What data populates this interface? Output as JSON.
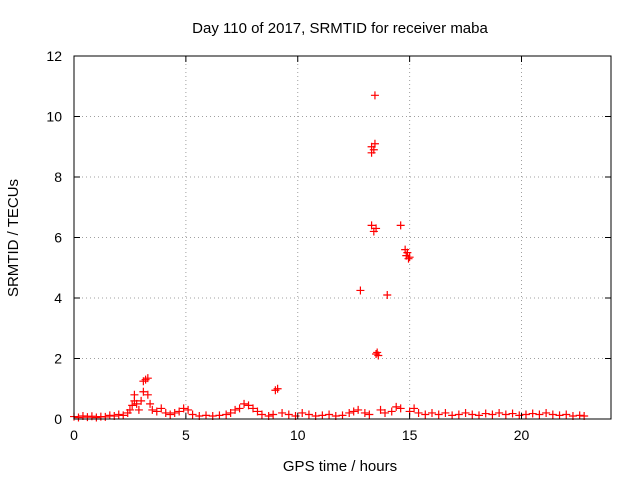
{
  "chart_data": {
    "type": "scatter",
    "title": "Day 110 of 2017, SRMTID for receiver maba",
    "xlabel": "GPS time / hours",
    "ylabel": "SRMTID / TECUs",
    "xlim": [
      0,
      24
    ],
    "ylim": [
      0,
      12
    ],
    "x_ticks": [
      0,
      5,
      10,
      15,
      20
    ],
    "y_ticks": [
      0,
      2,
      4,
      6,
      8,
      10,
      12
    ],
    "x_tick_labels": [
      "0",
      "5",
      "10",
      "15",
      "20"
    ],
    "y_tick_labels": [
      "0",
      "2",
      "4",
      "6",
      "8",
      "10",
      "12"
    ],
    "grid": true,
    "marker": "+",
    "colors": {
      "marker": "#ff0000",
      "grid": "#a0a0a0",
      "axis": "#000000"
    },
    "series": [
      {
        "name": "SRMTID",
        "points": [
          [
            0.0,
            0.08
          ],
          [
            0.2,
            0.05
          ],
          [
            0.4,
            0.1
          ],
          [
            0.6,
            0.06
          ],
          [
            0.8,
            0.09
          ],
          [
            1.0,
            0.05
          ],
          [
            1.2,
            0.08
          ],
          [
            1.4,
            0.07
          ],
          [
            1.6,
            0.12
          ],
          [
            1.8,
            0.1
          ],
          [
            2.0,
            0.15
          ],
          [
            2.2,
            0.12
          ],
          [
            2.4,
            0.2
          ],
          [
            2.5,
            0.3
          ],
          [
            2.6,
            0.45
          ],
          [
            2.7,
            0.6
          ],
          [
            2.7,
            0.8
          ],
          [
            2.8,
            0.5
          ],
          [
            2.9,
            0.3
          ],
          [
            3.0,
            0.6
          ],
          [
            3.1,
            0.9
          ],
          [
            3.1,
            1.25
          ],
          [
            3.2,
            1.3
          ],
          [
            3.3,
            1.35
          ],
          [
            3.3,
            0.8
          ],
          [
            3.4,
            0.5
          ],
          [
            3.5,
            0.3
          ],
          [
            3.7,
            0.25
          ],
          [
            3.9,
            0.35
          ],
          [
            4.1,
            0.2
          ],
          [
            4.3,
            0.15
          ],
          [
            4.5,
            0.2
          ],
          [
            4.7,
            0.25
          ],
          [
            4.9,
            0.35
          ],
          [
            5.1,
            0.3
          ],
          [
            5.3,
            0.15
          ],
          [
            5.6,
            0.1
          ],
          [
            5.9,
            0.12
          ],
          [
            6.2,
            0.1
          ],
          [
            6.5,
            0.12
          ],
          [
            6.8,
            0.15
          ],
          [
            7.0,
            0.2
          ],
          [
            7.2,
            0.3
          ],
          [
            7.4,
            0.35
          ],
          [
            7.6,
            0.5
          ],
          [
            7.8,
            0.45
          ],
          [
            8.0,
            0.35
          ],
          [
            8.2,
            0.25
          ],
          [
            8.4,
            0.15
          ],
          [
            8.7,
            0.1
          ],
          [
            8.9,
            0.15
          ],
          [
            9.0,
            0.95
          ],
          [
            9.1,
            1.0
          ],
          [
            9.3,
            0.2
          ],
          [
            9.6,
            0.15
          ],
          [
            9.9,
            0.1
          ],
          [
            10.2,
            0.2
          ],
          [
            10.5,
            0.15
          ],
          [
            10.8,
            0.1
          ],
          [
            11.1,
            0.12
          ],
          [
            11.4,
            0.15
          ],
          [
            11.7,
            0.1
          ],
          [
            12.0,
            0.12
          ],
          [
            12.3,
            0.2
          ],
          [
            12.5,
            0.25
          ],
          [
            12.7,
            0.3
          ],
          [
            12.8,
            4.25
          ],
          [
            13.0,
            0.2
          ],
          [
            13.2,
            0.15
          ],
          [
            13.3,
            8.8
          ],
          [
            13.3,
            9.0
          ],
          [
            13.3,
            6.4
          ],
          [
            13.4,
            6.2
          ],
          [
            13.4,
            8.9
          ],
          [
            13.45,
            9.1
          ],
          [
            13.45,
            10.7
          ],
          [
            13.5,
            6.3
          ],
          [
            13.5,
            2.15
          ],
          [
            13.55,
            2.2
          ],
          [
            13.6,
            2.1
          ],
          [
            13.7,
            0.3
          ],
          [
            13.9,
            0.2
          ],
          [
            14.0,
            4.1
          ],
          [
            14.2,
            0.25
          ],
          [
            14.4,
            0.4
          ],
          [
            14.6,
            6.4
          ],
          [
            14.6,
            0.35
          ],
          [
            14.8,
            5.6
          ],
          [
            14.85,
            5.4
          ],
          [
            14.9,
            5.5
          ],
          [
            14.95,
            5.3
          ],
          [
            15.0,
            5.35
          ],
          [
            15.0,
            0.25
          ],
          [
            15.2,
            0.35
          ],
          [
            15.4,
            0.2
          ],
          [
            15.7,
            0.15
          ],
          [
            16.0,
            0.2
          ],
          [
            16.3,
            0.15
          ],
          [
            16.6,
            0.2
          ],
          [
            16.9,
            0.12
          ],
          [
            17.2,
            0.15
          ],
          [
            17.5,
            0.2
          ],
          [
            17.8,
            0.15
          ],
          [
            18.1,
            0.12
          ],
          [
            18.4,
            0.18
          ],
          [
            18.7,
            0.15
          ],
          [
            19.0,
            0.2
          ],
          [
            19.3,
            0.15
          ],
          [
            19.6,
            0.18
          ],
          [
            19.9,
            0.12
          ],
          [
            20.2,
            0.15
          ],
          [
            20.5,
            0.18
          ],
          [
            20.8,
            0.15
          ],
          [
            21.1,
            0.2
          ],
          [
            21.4,
            0.15
          ],
          [
            21.7,
            0.12
          ],
          [
            22.0,
            0.15
          ],
          [
            22.3,
            0.1
          ],
          [
            22.6,
            0.12
          ],
          [
            22.8,
            0.1
          ]
        ]
      }
    ]
  }
}
